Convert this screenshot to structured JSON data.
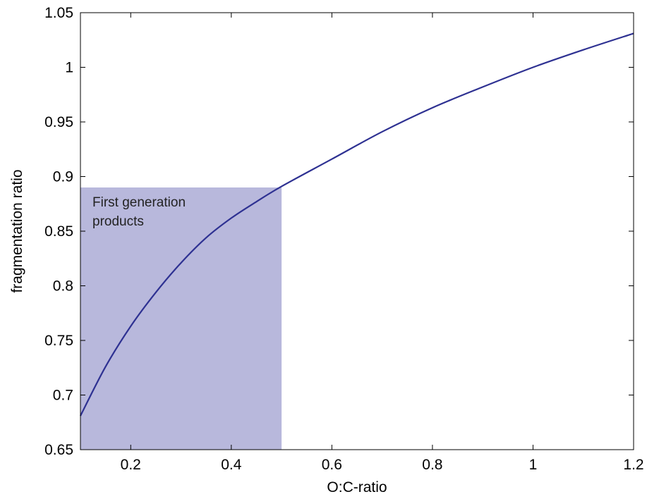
{
  "chart_data": {
    "type": "line",
    "title": "",
    "xlabel": "O:C-ratio",
    "ylabel": "fragmentation ratio",
    "xlim": [
      0.1,
      1.2
    ],
    "ylim": [
      0.65,
      1.05
    ],
    "xticks": [
      0.2,
      0.4,
      0.6,
      0.8,
      1,
      1.2
    ],
    "xtick_labels": [
      "0.2",
      "0.4",
      "0.6",
      "0.8",
      "1",
      "1.2"
    ],
    "yticks": [
      0.65,
      0.7,
      0.75,
      0.8,
      0.85,
      0.9,
      0.95,
      1,
      1.05
    ],
    "ytick_labels": [
      "0.65",
      "0.7",
      "0.75",
      "0.8",
      "0.85",
      "0.9",
      "0.95",
      "1",
      "1.05"
    ],
    "grid": false,
    "line_color": "#2e3192",
    "series": [
      {
        "x": [
          0.1,
          0.15,
          0.2,
          0.25,
          0.3,
          0.35,
          0.4,
          0.45,
          0.5,
          0.6,
          0.7,
          0.8,
          0.9,
          1.0,
          1.1,
          1.2
        ],
        "y": [
          0.681,
          0.726,
          0.763,
          0.794,
          0.821,
          0.844,
          0.862,
          0.877,
          0.891,
          0.916,
          0.941,
          0.963,
          0.982,
          1.0,
          1.016,
          1.031
        ]
      }
    ],
    "shaded_region": {
      "x": [
        0.1,
        0.5
      ],
      "y": [
        0.65,
        0.89
      ],
      "color": "#b8b8dc",
      "label_lines": [
        "First generation",
        "products"
      ]
    }
  }
}
